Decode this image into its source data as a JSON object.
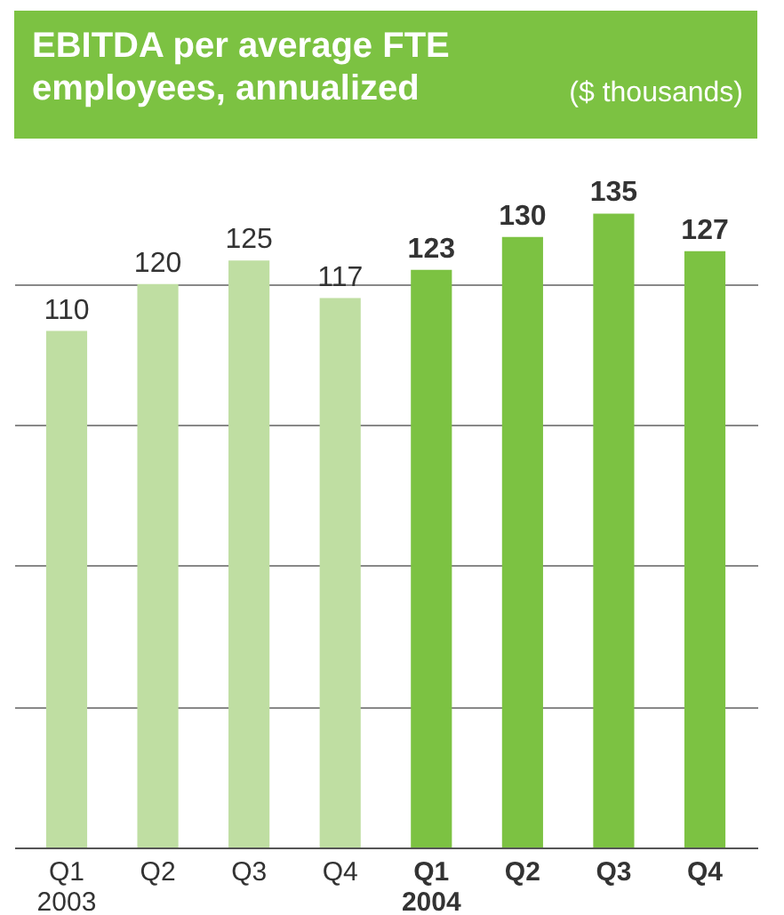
{
  "chart_data": {
    "type": "bar",
    "title": "EBITDA per average FTE\nemployees, annualized",
    "subtitle": "($ thousands)",
    "categories": [
      "Q1\n2003",
      "Q2",
      "Q3",
      "Q4",
      "Q1\n2004",
      "Q2",
      "Q3",
      "Q4"
    ],
    "values": [
      110,
      120,
      125,
      117,
      123,
      130,
      135,
      127
    ],
    "colors": [
      "#bfdea2",
      "#bfdea2",
      "#bfdea2",
      "#bfdea2",
      "#7cc242",
      "#7cc242",
      "#7cc242",
      "#7cc242"
    ],
    "data_labels": true,
    "yticks": [
      {
        "value": 0,
        "label": null
      },
      {
        "value": 30,
        "label": null
      },
      {
        "value": 60,
        "label": null
      },
      {
        "value": 90,
        "label": null
      },
      {
        "value": 120,
        "label": null
      }
    ],
    "grid": "y",
    "tick_labels": "x"
  }
}
